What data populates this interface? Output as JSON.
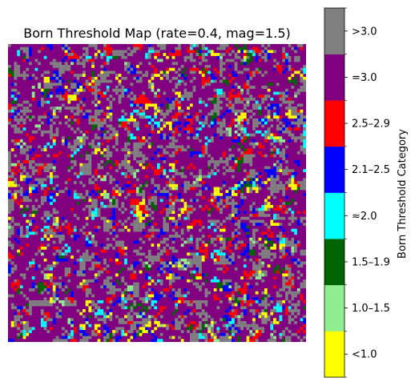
{
  "chart_data": {
    "type": "heatmap",
    "title": "Born Threshold Map (rate=0.4, mag=1.5)",
    "colorbar_label": "Born Threshold Category",
    "categories": [
      {
        "label": "<1.0",
        "color": "#ffff00",
        "share": 0.035
      },
      {
        "label": "1.0–1.5",
        "color": "#90ee90",
        "share": 0.015
      },
      {
        "label": "1.5–1.9",
        "color": "#006400",
        "share": 0.02
      },
      {
        "label": "≈2.0",
        "color": "#00ffff",
        "share": 0.035
      },
      {
        "label": "2.1–2.5",
        "color": "#0000ff",
        "share": 0.05
      },
      {
        "label": "2.5–2.9",
        "color": "#ff0000",
        "share": 0.06
      },
      {
        "label": "=3.0",
        "color": "#800080",
        "share": 0.565
      },
      {
        "label": ">3.0",
        "color": "#808080",
        "share": 0.22
      }
    ],
    "grid_rows": 100,
    "grid_cols": 100,
    "axes_visible": false,
    "legend_position": "right"
  }
}
